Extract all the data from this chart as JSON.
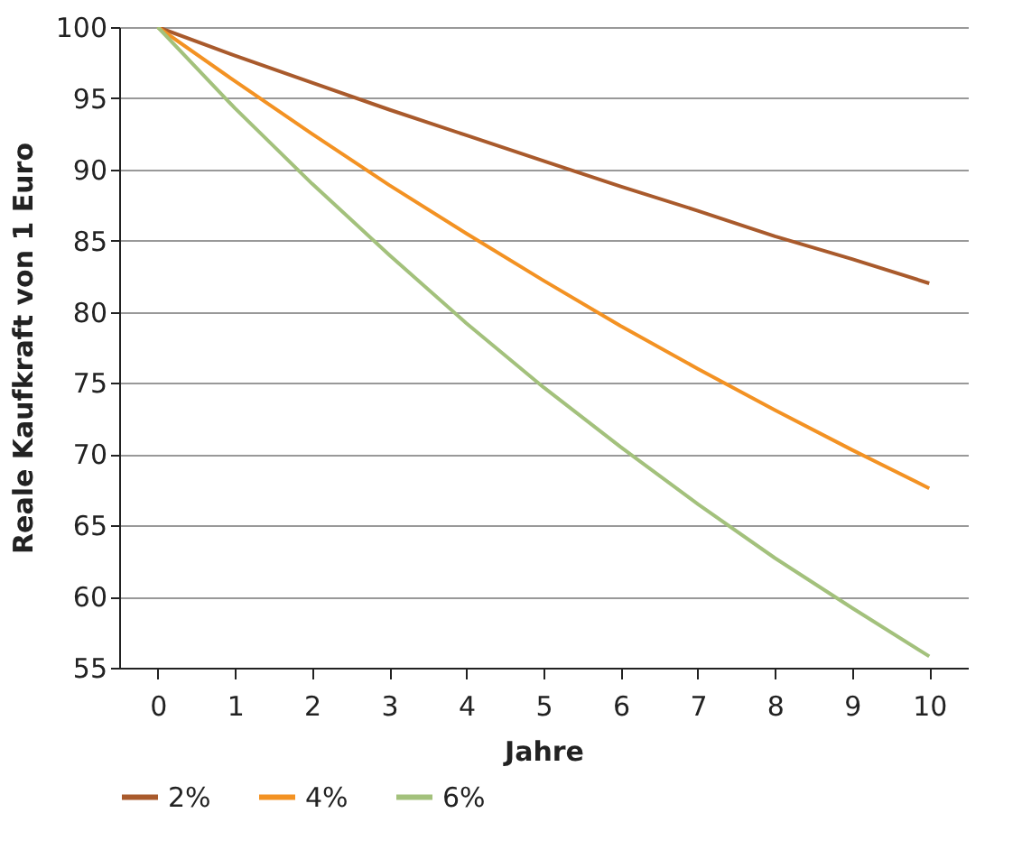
{
  "chart_data": {
    "type": "line",
    "xlabel": "Jahre",
    "ylabel": "Reale Kaufkraft von 1 Euro",
    "categories": [
      "0",
      "1",
      "2",
      "3",
      "4",
      "5",
      "6",
      "7",
      "8",
      "9",
      "10"
    ],
    "series": [
      {
        "name": "2%",
        "color": "#a95a2c",
        "values": [
          100,
          98,
          96.1,
          94.2,
          92.4,
          90.6,
          88.8,
          87.1,
          85.3,
          83.7,
          82
        ]
      },
      {
        "name": "4%",
        "color": "#f39223",
        "values": [
          100,
          96.2,
          92.5,
          88.9,
          85.5,
          82.2,
          79,
          76,
          73.1,
          70.3,
          67.6
        ]
      },
      {
        "name": "6%",
        "color": "#a3c17c",
        "values": [
          100,
          94.3,
          89,
          84,
          79.2,
          74.7,
          70.5,
          66.5,
          62.7,
          59.2,
          55.8
        ]
      }
    ],
    "ylim": [
      55,
      100
    ],
    "yticks": [
      55,
      60,
      65,
      70,
      75,
      80,
      85,
      90,
      95,
      100
    ],
    "grid": "y",
    "legend": "bottom",
    "marker": "none",
    "line_style": "solid"
  }
}
